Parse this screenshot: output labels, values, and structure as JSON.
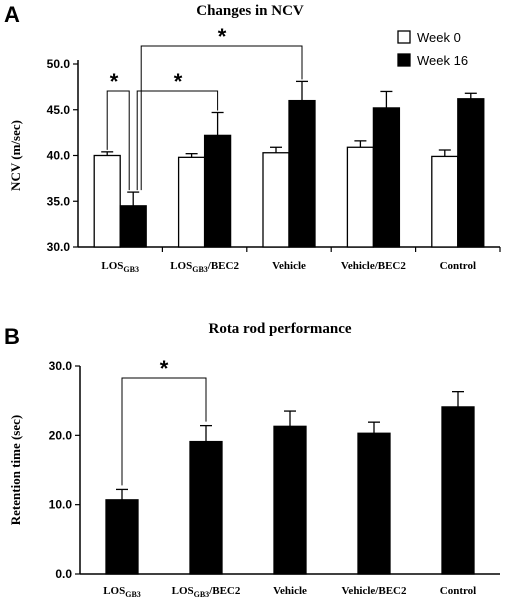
{
  "chart_data": [
    {
      "type": "bar",
      "panel": "A",
      "title": "Changes in NCV",
      "ylabel": "NCV  (m/sec)",
      "ylim": [
        30,
        50
      ],
      "yticks": [
        "30.0",
        "35.0",
        "40.0",
        "45.0",
        "50.0"
      ],
      "categories": [
        {
          "main": "LOS",
          "sub": "GB3",
          "rest": ""
        },
        {
          "main": "LOS",
          "sub": "GB3",
          "rest": "/BEC2"
        },
        {
          "main": "Vehicle",
          "sub": "",
          "rest": ""
        },
        {
          "main": "Vehicle/BEC2",
          "sub": "",
          "rest": ""
        },
        {
          "main": "Control",
          "sub": "",
          "rest": ""
        }
      ],
      "series": [
        {
          "name": "Week 0",
          "color": "#ffffff",
          "values": [
            40.0,
            39.8,
            40.3,
            40.9,
            39.9
          ],
          "errors": [
            0.4,
            0.4,
            0.6,
            0.7,
            0.7
          ]
        },
        {
          "name": "Week 16",
          "color": "#000000",
          "values": [
            34.5,
            42.2,
            46.0,
            45.2,
            46.2
          ],
          "errors": [
            1.5,
            2.5,
            2.1,
            1.8,
            0.6
          ]
        }
      ],
      "legend_position": "top-right",
      "significance": [
        {
          "label": "*",
          "from": [
            0,
            0
          ],
          "to": [
            0,
            1
          ]
        },
        {
          "label": "*",
          "from": [
            0,
            1
          ],
          "to": [
            1,
            1
          ]
        },
        {
          "label": "*",
          "from": [
            0,
            1
          ],
          "to": [
            2,
            1
          ]
        }
      ]
    },
    {
      "type": "bar",
      "panel": "B",
      "title": "Rota rod performance",
      "ylabel": "Retention time  (sec)",
      "ylim": [
        0,
        30
      ],
      "yticks": [
        "0.0",
        "10.0",
        "20.0",
        "30.0"
      ],
      "categories": [
        {
          "main": "LOS",
          "sub": "GB3",
          "rest": ""
        },
        {
          "main": "LOS",
          "sub": "GB3",
          "rest": "/BEC2"
        },
        {
          "main": "Vehicle",
          "sub": "",
          "rest": ""
        },
        {
          "main": "Vehicle/BEC2",
          "sub": "",
          "rest": ""
        },
        {
          "main": "Control",
          "sub": "",
          "rest": ""
        }
      ],
      "values": [
        10.7,
        19.1,
        21.3,
        20.3,
        24.1
      ],
      "errors": [
        1.5,
        2.3,
        2.2,
        1.6,
        2.2
      ],
      "color": "#000000",
      "significance": [
        {
          "label": "*",
          "from": 0,
          "to": 1
        }
      ]
    }
  ]
}
